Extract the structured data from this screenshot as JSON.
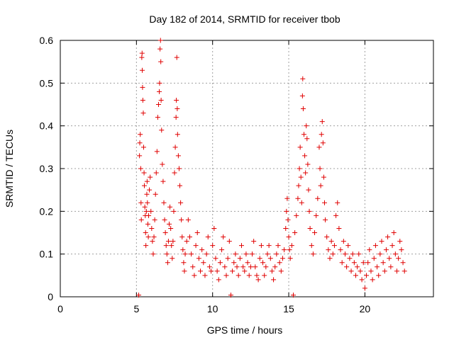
{
  "chart_data": {
    "type": "scatter",
    "title": "Day 182 of 2014, SRMTID for receiver tbob",
    "xlabel": "GPS time / hours",
    "ylabel": "SRMTID / TECUs",
    "xlim": [
      0,
      24.5
    ],
    "ylim": [
      0,
      0.6
    ],
    "xticks": [
      0,
      5,
      10,
      15,
      20
    ],
    "yticks": [
      0,
      0.1,
      0.2,
      0.3,
      0.4,
      0.5,
      0.6
    ],
    "xtick_labels": [
      "0",
      "5",
      "10",
      "15",
      "20"
    ],
    "ytick_labels": [
      "0",
      "0.1",
      "0.2",
      "0.3",
      "0.4",
      "0.5",
      "0.6"
    ],
    "grid": true,
    "marker": "+",
    "color": "#e00000",
    "series": [
      {
        "name": "SRMTID",
        "points": [
          [
            5.15,
            0.004
          ],
          [
            5.2,
            0.33
          ],
          [
            5.22,
            0.36
          ],
          [
            5.25,
            0.38
          ],
          [
            5.28,
            0.3
          ],
          [
            5.3,
            0.22
          ],
          [
            5.32,
            0.18
          ],
          [
            5.35,
            0.56
          ],
          [
            5.37,
            0.57
          ],
          [
            5.38,
            0.53
          ],
          [
            5.4,
            0.49
          ],
          [
            5.42,
            0.46
          ],
          [
            5.45,
            0.43
          ],
          [
            5.47,
            0.35
          ],
          [
            5.5,
            0.29
          ],
          [
            5.52,
            0.26
          ],
          [
            5.55,
            0.21
          ],
          [
            5.58,
            0.19
          ],
          [
            5.6,
            0.15
          ],
          [
            5.62,
            0.12
          ],
          [
            5.65,
            0.2
          ],
          [
            5.68,
            0.24
          ],
          [
            5.7,
            0.27
          ],
          [
            5.72,
            0.22
          ],
          [
            5.75,
            0.17
          ],
          [
            5.78,
            0.14
          ],
          [
            5.8,
            0.19
          ],
          [
            5.85,
            0.25
          ],
          [
            5.9,
            0.28
          ],
          [
            5.95,
            0.2
          ],
          [
            6.0,
            0.16
          ],
          [
            6.05,
            0.13
          ],
          [
            6.1,
            0.1
          ],
          [
            6.15,
            0.14
          ],
          [
            6.2,
            0.18
          ],
          [
            6.25,
            0.24
          ],
          [
            6.3,
            0.29
          ],
          [
            6.35,
            0.34
          ],
          [
            6.4,
            0.42
          ],
          [
            6.45,
            0.45
          ],
          [
            6.5,
            0.48
          ],
          [
            6.52,
            0.5
          ],
          [
            6.55,
            0.58
          ],
          [
            6.58,
            0.6
          ],
          [
            6.6,
            0.55
          ],
          [
            6.62,
            0.46
          ],
          [
            6.65,
            0.39
          ],
          [
            6.7,
            0.31
          ],
          [
            6.75,
            0.27
          ],
          [
            6.8,
            0.22
          ],
          [
            6.85,
            0.18
          ],
          [
            6.9,
            0.15
          ],
          [
            6.95,
            0.12
          ],
          [
            7.0,
            0.1
          ],
          [
            7.05,
            0.08
          ],
          [
            7.1,
            0.13
          ],
          [
            7.15,
            0.17
          ],
          [
            7.2,
            0.21
          ],
          [
            7.25,
            0.16
          ],
          [
            7.3,
            0.12
          ],
          [
            7.35,
            0.09
          ],
          [
            7.4,
            0.13
          ],
          [
            7.45,
            0.2
          ],
          [
            7.5,
            0.29
          ],
          [
            7.55,
            0.35
          ],
          [
            7.6,
            0.42
          ],
          [
            7.62,
            0.46
          ],
          [
            7.65,
            0.56
          ],
          [
            7.68,
            0.44
          ],
          [
            7.7,
            0.38
          ],
          [
            7.75,
            0.33
          ],
          [
            7.8,
            0.3
          ],
          [
            7.85,
            0.26
          ],
          [
            7.9,
            0.22
          ],
          [
            7.95,
            0.18
          ],
          [
            8.0,
            0.14
          ],
          [
            8.05,
            0.11
          ],
          [
            8.1,
            0.08
          ],
          [
            8.15,
            0.06
          ],
          [
            8.2,
            0.1
          ],
          [
            8.3,
            0.13
          ],
          [
            8.4,
            0.18
          ],
          [
            8.5,
            0.14
          ],
          [
            8.6,
            0.1
          ],
          [
            8.7,
            0.07
          ],
          [
            8.8,
            0.05
          ],
          [
            8.9,
            0.12
          ],
          [
            9.0,
            0.15
          ],
          [
            9.1,
            0.09
          ],
          [
            9.2,
            0.06
          ],
          [
            9.3,
            0.11
          ],
          [
            9.4,
            0.08
          ],
          [
            9.5,
            0.05
          ],
          [
            9.6,
            0.1
          ],
          [
            9.7,
            0.14
          ],
          [
            9.8,
            0.07
          ],
          [
            9.9,
            0.06
          ],
          [
            10.0,
            0.12
          ],
          [
            10.1,
            0.16
          ],
          [
            10.2,
            0.09
          ],
          [
            10.3,
            0.06
          ],
          [
            10.4,
            0.04
          ],
          [
            10.5,
            0.08
          ],
          [
            10.6,
            0.11
          ],
          [
            10.7,
            0.14
          ],
          [
            10.8,
            0.07
          ],
          [
            10.9,
            0.05
          ],
          [
            11.0,
            0.09
          ],
          [
            11.1,
            0.13
          ],
          [
            11.2,
            0.004
          ],
          [
            11.3,
            0.06
          ],
          [
            11.4,
            0.08
          ],
          [
            11.5,
            0.1
          ],
          [
            11.6,
            0.07
          ],
          [
            11.7,
            0.05
          ],
          [
            11.8,
            0.09
          ],
          [
            11.9,
            0.12
          ],
          [
            12.0,
            0.07
          ],
          [
            12.1,
            0.06
          ],
          [
            12.2,
            0.1
          ],
          [
            12.3,
            0.08
          ],
          [
            12.4,
            0.05
          ],
          [
            12.5,
            0.07
          ],
          [
            12.6,
            0.1
          ],
          [
            12.7,
            0.13
          ],
          [
            12.8,
            0.07
          ],
          [
            12.9,
            0.05
          ],
          [
            13.0,
            0.04
          ],
          [
            13.1,
            0.09
          ],
          [
            13.2,
            0.12
          ],
          [
            13.3,
            0.08
          ],
          [
            13.4,
            0.05
          ],
          [
            13.5,
            0.07
          ],
          [
            13.6,
            0.1
          ],
          [
            13.7,
            0.12
          ],
          [
            13.8,
            0.09
          ],
          [
            13.9,
            0.06
          ],
          [
            14.0,
            0.04
          ],
          [
            14.1,
            0.07
          ],
          [
            14.2,
            0.1
          ],
          [
            14.3,
            0.12
          ],
          [
            14.4,
            0.08
          ],
          [
            14.5,
            0.06
          ],
          [
            14.6,
            0.09
          ],
          [
            14.7,
            0.11
          ],
          [
            14.8,
            0.16
          ],
          [
            14.85,
            0.2
          ],
          [
            14.9,
            0.23
          ],
          [
            14.95,
            0.18
          ],
          [
            15.0,
            0.14
          ],
          [
            15.05,
            0.11
          ],
          [
            15.1,
            0.09
          ],
          [
            15.2,
            0.12
          ],
          [
            15.3,
            0.004
          ],
          [
            15.4,
            0.15
          ],
          [
            15.5,
            0.19
          ],
          [
            15.6,
            0.23
          ],
          [
            15.65,
            0.26
          ],
          [
            15.7,
            0.3
          ],
          [
            15.75,
            0.35
          ],
          [
            15.8,
            0.28
          ],
          [
            15.85,
            0.22
          ],
          [
            15.9,
            0.47
          ],
          [
            15.92,
            0.51
          ],
          [
            15.95,
            0.44
          ],
          [
            16.0,
            0.38
          ],
          [
            16.05,
            0.33
          ],
          [
            16.1,
            0.29
          ],
          [
            16.15,
            0.4
          ],
          [
            16.2,
            0.37
          ],
          [
            16.25,
            0.31
          ],
          [
            16.3,
            0.25
          ],
          [
            16.35,
            0.2
          ],
          [
            16.4,
            0.16
          ],
          [
            16.5,
            0.12
          ],
          [
            16.6,
            0.1
          ],
          [
            16.7,
            0.15
          ],
          [
            16.8,
            0.19
          ],
          [
            16.9,
            0.23
          ],
          [
            17.0,
            0.35
          ],
          [
            17.05,
            0.3
          ],
          [
            17.1,
            0.26
          ],
          [
            17.15,
            0.38
          ],
          [
            17.2,
            0.41
          ],
          [
            17.25,
            0.36
          ],
          [
            17.3,
            0.28
          ],
          [
            17.35,
            0.22
          ],
          [
            17.4,
            0.18
          ],
          [
            17.5,
            0.14
          ],
          [
            17.6,
            0.11
          ],
          [
            17.7,
            0.09
          ],
          [
            17.8,
            0.13
          ],
          [
            17.9,
            0.1
          ],
          [
            18.0,
            0.12
          ],
          [
            18.1,
            0.19
          ],
          [
            18.2,
            0.22
          ],
          [
            18.3,
            0.16
          ],
          [
            18.4,
            0.11
          ],
          [
            18.5,
            0.08
          ],
          [
            18.6,
            0.13
          ],
          [
            18.7,
            0.1
          ],
          [
            18.8,
            0.07
          ],
          [
            18.9,
            0.12
          ],
          [
            19.0,
            0.09
          ],
          [
            19.1,
            0.06
          ],
          [
            19.2,
            0.1
          ],
          [
            19.3,
            0.08
          ],
          [
            19.4,
            0.05
          ],
          [
            19.5,
            0.07
          ],
          [
            19.6,
            0.1
          ],
          [
            19.7,
            0.06
          ],
          [
            19.8,
            0.04
          ],
          [
            19.9,
            0.08
          ],
          [
            20.0,
            0.02
          ],
          [
            20.1,
            0.05
          ],
          [
            20.2,
            0.08
          ],
          [
            20.3,
            0.11
          ],
          [
            20.4,
            0.06
          ],
          [
            20.5,
            0.04
          ],
          [
            20.6,
            0.09
          ],
          [
            20.7,
            0.12
          ],
          [
            20.8,
            0.07
          ],
          [
            20.9,
            0.05
          ],
          [
            21.0,
            0.1
          ],
          [
            21.1,
            0.13
          ],
          [
            21.2,
            0.08
          ],
          [
            21.3,
            0.06
          ],
          [
            21.4,
            0.11
          ],
          [
            21.5,
            0.14
          ],
          [
            21.6,
            0.09
          ],
          [
            21.7,
            0.07
          ],
          [
            21.8,
            0.12
          ],
          [
            21.9,
            0.15
          ],
          [
            22.0,
            0.1
          ],
          [
            22.1,
            0.06
          ],
          [
            22.2,
            0.09
          ],
          [
            22.3,
            0.13
          ],
          [
            22.4,
            0.11
          ],
          [
            22.5,
            0.08
          ],
          [
            22.6,
            0.06
          ]
        ]
      }
    ]
  }
}
